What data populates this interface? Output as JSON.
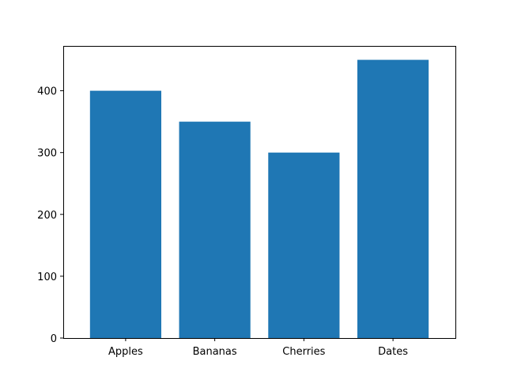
{
  "chart_data": {
    "type": "bar",
    "categories": [
      "Apples",
      "Bananas",
      "Cherries",
      "Dates"
    ],
    "values": [
      400,
      350,
      300,
      450
    ],
    "ylim": [
      0,
      472.5
    ],
    "yticks": [
      0,
      100,
      200,
      300,
      400
    ],
    "grid": false,
    "bar_color": "#1f77b4"
  }
}
